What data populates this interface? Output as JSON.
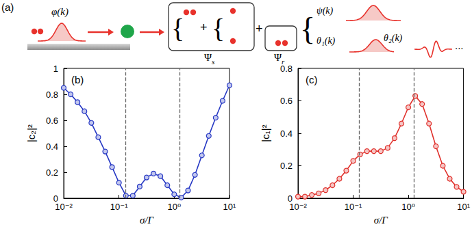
{
  "diagram": {
    "panel": "(a)",
    "incoming": "φ(k)",
    "plus": "+",
    "brace": "{",
    "states": [
      {
        "base": "Ψ",
        "sub": "s"
      },
      {
        "base": "Ψ",
        "sub": "r"
      }
    ],
    "modes": [
      "ψ(k)",
      "θ₁(k)",
      "θ₂(k)"
    ],
    "ellipsis": "..."
  },
  "chart_data": [
    {
      "type": "line",
      "title": "(b)",
      "xlabel": "σ/Γ",
      "ylabel": "|c₂|²",
      "log": "x",
      "grid": false,
      "marker": "circle",
      "color": "#2638c4",
      "x": [
        0.01,
        0.01334,
        0.01778,
        0.02371,
        0.03162,
        0.04217,
        0.05623,
        0.07499,
        0.1,
        0.1334,
        0.1778,
        0.2371,
        0.3162,
        0.4217,
        0.5623,
        0.7499,
        1,
        1.334,
        1.778,
        2.371,
        3.162,
        4.217,
        5.623,
        7.499,
        10
      ],
      "values": [
        0.85,
        0.8,
        0.74,
        0.67,
        0.58,
        0.47,
        0.36,
        0.24,
        0.12,
        0.02,
        0.02,
        0.09,
        0.16,
        0.19,
        0.17,
        0.1,
        0.03,
        0.005,
        0.06,
        0.18,
        0.33,
        0.48,
        0.62,
        0.75,
        0.87
      ],
      "vlines": [
        0.13,
        1.25
      ],
      "xlim": [
        0.01,
        10
      ],
      "xticks": [
        {
          "value": 0.01,
          "label": "10⁻²"
        },
        {
          "value": 0.1,
          "label": "10⁻¹"
        },
        {
          "value": 1,
          "label": "10⁰"
        },
        {
          "value": 10,
          "label": "10¹"
        }
      ],
      "ylim": [
        0,
        1
      ],
      "yticks": [
        0,
        0.2,
        0.4,
        0.6,
        0.8,
        1
      ]
    },
    {
      "type": "line",
      "title": "(c)",
      "xlabel": "σ/Γ",
      "ylabel": "|c₁|²",
      "log": "x",
      "grid": false,
      "marker": "circle",
      "color": "#e0302b",
      "x": [
        0.01,
        0.01334,
        0.01778,
        0.02371,
        0.03162,
        0.04217,
        0.05623,
        0.07499,
        0.1,
        0.1334,
        0.1778,
        0.2371,
        0.3162,
        0.4217,
        0.5623,
        0.7499,
        1,
        1.334,
        1.778,
        2.371,
        3.162,
        4.217,
        5.623,
        7.499,
        10
      ],
      "values": [
        0.01,
        0.01,
        0.02,
        0.03,
        0.05,
        0.08,
        0.12,
        0.17,
        0.23,
        0.27,
        0.29,
        0.29,
        0.29,
        0.31,
        0.37,
        0.46,
        0.56,
        0.63,
        0.58,
        0.46,
        0.32,
        0.2,
        0.12,
        0.07,
        0.04
      ],
      "vlines": [
        0.13,
        1.25
      ],
      "xlim": [
        0.01,
        10
      ],
      "xticks": [
        {
          "value": 0.01,
          "label": "10⁻²"
        },
        {
          "value": 0.1,
          "label": "10⁻¹"
        },
        {
          "value": 1,
          "label": "10⁰"
        },
        {
          "value": 10,
          "label": "10¹"
        }
      ],
      "ylim": [
        0,
        0.8
      ],
      "yticks": [
        0,
        0.2,
        0.4,
        0.6,
        0.8
      ]
    }
  ]
}
